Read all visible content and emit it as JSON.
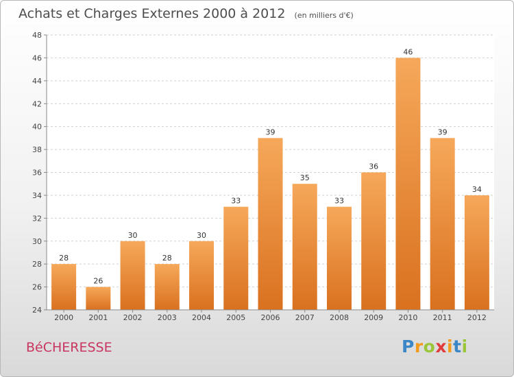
{
  "title": "Achats et Charges Externes 2000 à 2012",
  "unit": "(en milliers d'€)",
  "commune": "BéCHERESSE",
  "logo": {
    "letters": [
      "P",
      "r",
      "o",
      "x",
      "i",
      "t",
      "i"
    ],
    "colors": [
      "#3a86c6",
      "#f39b1e",
      "#9bc63a",
      "#e23b3b",
      "#f39b1e",
      "#3a86c6",
      "#9bc63a"
    ]
  },
  "colors": {
    "bar_top": "#f6a85a",
    "bar_bottom": "#d9711f",
    "title": "#4d4d4d",
    "commune": "#c8355f"
  },
  "chart_data": {
    "type": "bar",
    "title": "Achats et Charges Externes 2000 à 2012",
    "subtitle": "(en milliers d'€)",
    "categories": [
      "2000",
      "2001",
      "2002",
      "2003",
      "2004",
      "2005",
      "2006",
      "2007",
      "2008",
      "2009",
      "2010",
      "2011",
      "2012"
    ],
    "values": [
      28,
      26,
      30,
      28,
      30,
      33,
      39,
      35,
      33,
      36,
      46,
      39,
      34
    ],
    "ylim": [
      24,
      48
    ],
    "yticks": [
      24,
      26,
      28,
      30,
      32,
      34,
      36,
      38,
      40,
      42,
      44,
      46,
      48
    ],
    "grid": "horizontal dashed",
    "data_labels": true
  }
}
